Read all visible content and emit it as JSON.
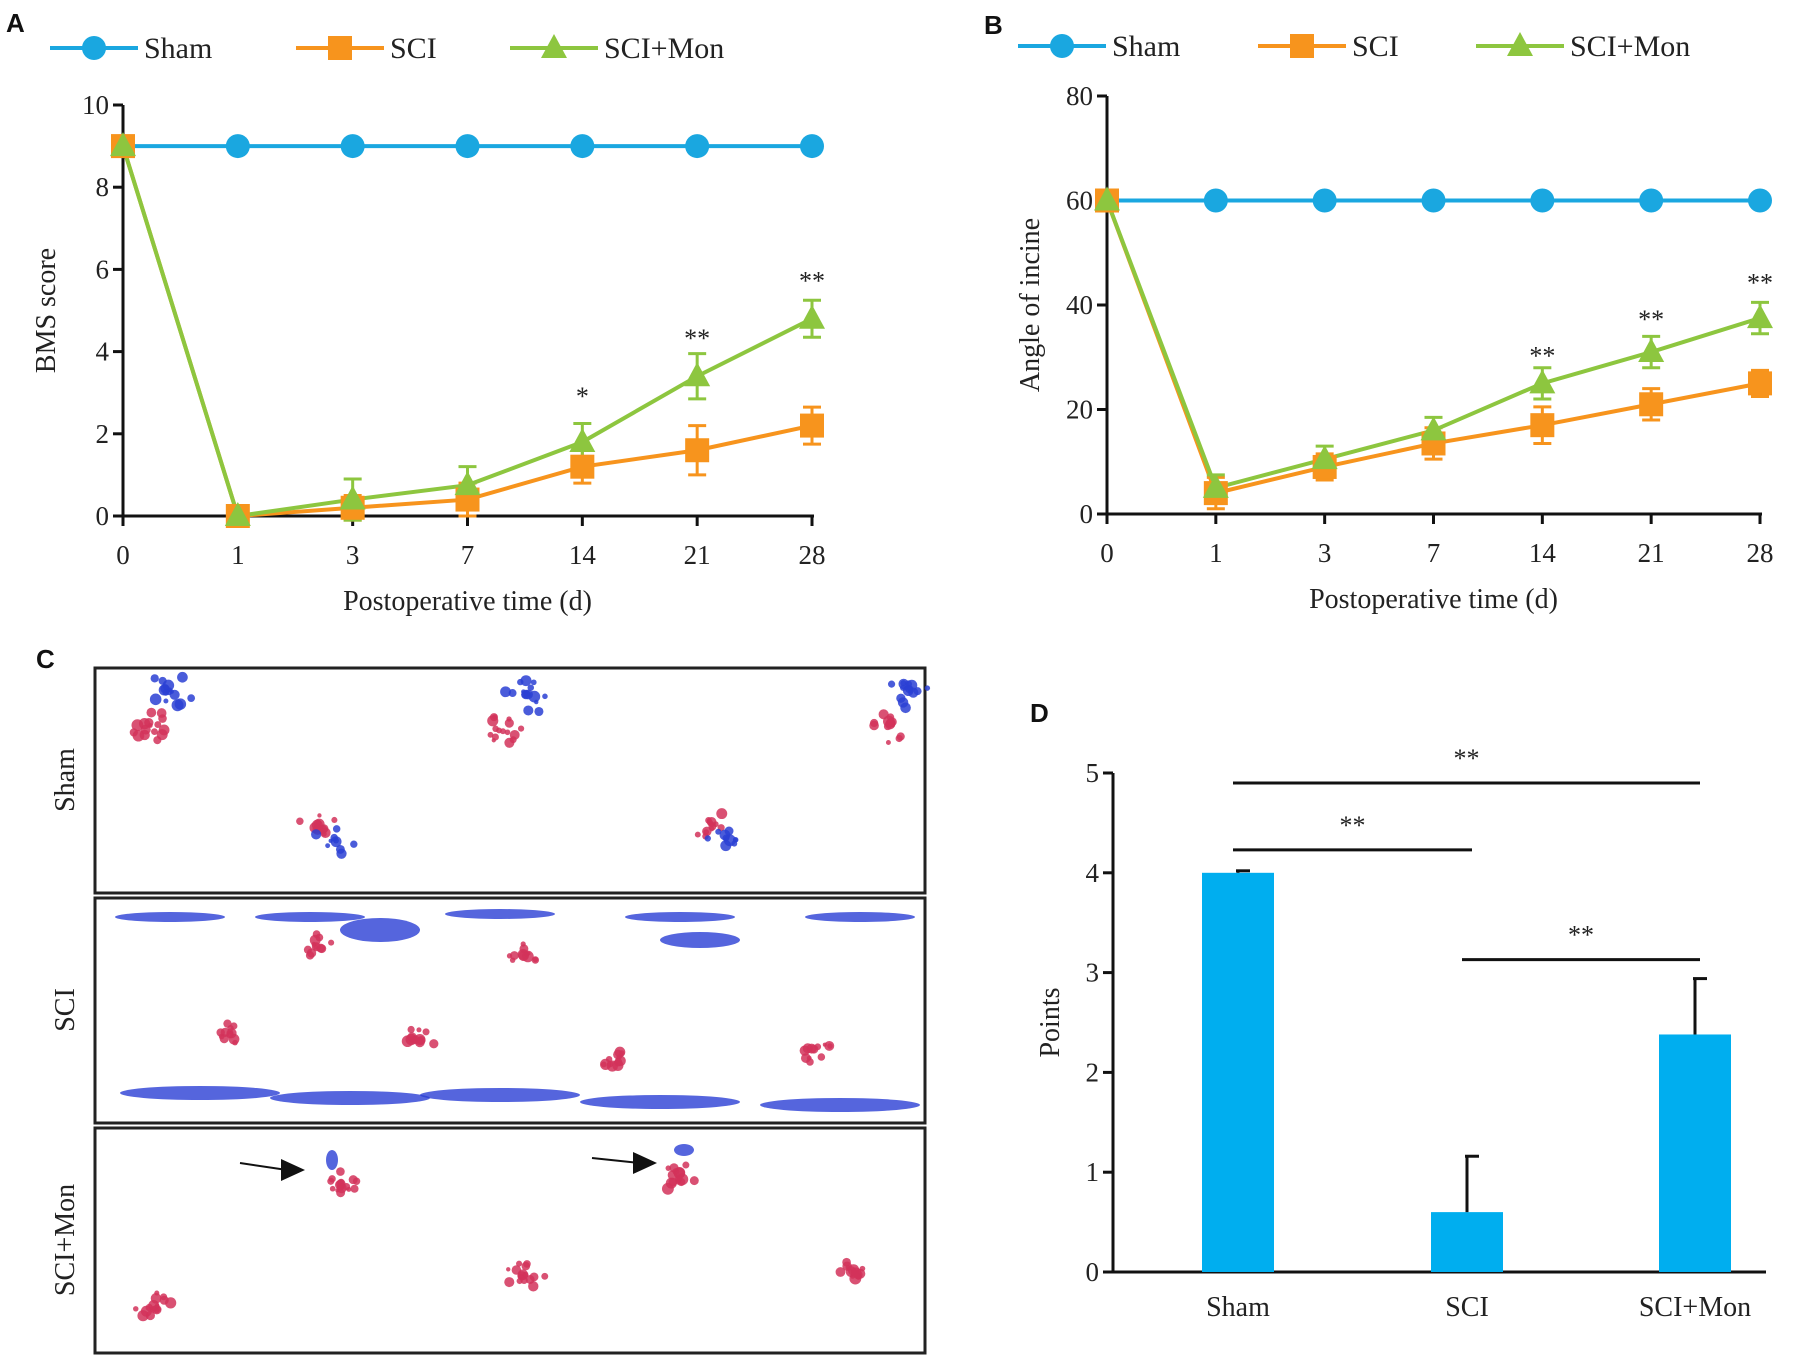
{
  "colors": {
    "sham": "#1aa7e0",
    "sci": "#f7941d",
    "sci_mon": "#8dc63f",
    "bar": "#00aeef",
    "axis": "#111111",
    "paw_red": "#d2335a",
    "paw_blue": "#2a3fd4"
  },
  "panels": {
    "A": "A",
    "B": "B",
    "C": "C",
    "D": "D"
  },
  "footprints": {
    "rows": [
      "Sham",
      "SCI",
      "SCI+Mon"
    ]
  },
  "chart_data": [
    {
      "type": "line",
      "panel": "A",
      "x": [
        "0",
        "1",
        "3",
        "7",
        "14",
        "21",
        "28"
      ],
      "xlabel": "Postoperative time (d)",
      "ylabel": "BMS score",
      "ylim": [
        0,
        10
      ],
      "yticks": [
        "0",
        "2",
        "4",
        "6",
        "8",
        "10"
      ],
      "legend_position": "top",
      "series": [
        {
          "name": "Sham",
          "marker": "circle",
          "values": [
            9,
            9,
            9,
            9,
            9,
            9,
            9
          ],
          "errors": [
            0,
            0,
            0,
            0,
            0,
            0,
            0
          ]
        },
        {
          "name": "SCI",
          "marker": "square",
          "values": [
            9,
            0,
            0.2,
            0.4,
            1.2,
            1.6,
            2.2
          ],
          "errors": [
            0,
            0,
            0.3,
            0.4,
            0.4,
            0.6,
            0.45
          ]
        },
        {
          "name": "SCI+Mon",
          "marker": "triangle",
          "values": [
            9,
            0,
            0.4,
            0.75,
            1.8,
            3.4,
            4.8
          ],
          "errors": [
            0,
            0,
            0.5,
            0.45,
            0.45,
            0.55,
            0.45
          ]
        }
      ],
      "annotations": [
        {
          "x": "14",
          "label": "*",
          "above": 2.95
        },
        {
          "x": "21",
          "label": "**",
          "above": 4.35
        },
        {
          "x": "28",
          "label": "**",
          "above": 5.75
        }
      ]
    },
    {
      "type": "line",
      "panel": "B",
      "x": [
        "0",
        "1",
        "3",
        "7",
        "14",
        "21",
        "28"
      ],
      "xlabel": "Postoperative time (d)",
      "ylabel": "Angle of incine",
      "ylim": [
        0,
        80
      ],
      "yticks": [
        "0",
        "20",
        "40",
        "60",
        "80"
      ],
      "legend_position": "top",
      "series": [
        {
          "name": "Sham",
          "marker": "circle",
          "values": [
            60,
            60,
            60,
            60,
            60,
            60,
            60
          ],
          "errors": [
            0,
            0,
            0,
            0,
            0,
            0,
            0
          ]
        },
        {
          "name": "SCI",
          "marker": "square",
          "values": [
            60,
            4,
            9,
            13.5,
            17,
            21,
            25
          ],
          "errors": [
            0,
            3,
            2.5,
            3,
            3.5,
            3,
            2.5
          ]
        },
        {
          "name": "SCI+Mon",
          "marker": "triangle",
          "values": [
            60,
            5,
            10.5,
            16,
            25,
            31,
            37.5
          ],
          "errors": [
            0,
            2.5,
            2.5,
            2.5,
            3,
            3,
            3
          ]
        }
      ],
      "annotations": [
        {
          "x": "14",
          "label": "**",
          "above": 30.5
        },
        {
          "x": "21",
          "label": "**",
          "above": 37.5
        },
        {
          "x": "28",
          "label": "**",
          "above": 44.5
        }
      ]
    },
    {
      "type": "bar",
      "panel": "D",
      "categories": [
        "Sham",
        "SCI",
        "SCI+Mon"
      ],
      "values": [
        4.0,
        0.6,
        2.38
      ],
      "errors": [
        0.02,
        0.56,
        0.56
      ],
      "ylabel": "Points",
      "ylim": [
        0,
        5
      ],
      "yticks": [
        "0",
        "1",
        "2",
        "3",
        "4",
        "5"
      ],
      "significance": [
        {
          "from": 0,
          "to": 2,
          "label": "**",
          "level": 4.9
        },
        {
          "from": 0,
          "to": 1,
          "label": "**",
          "level": 4.23
        },
        {
          "from": 1,
          "to": 2,
          "label": "**",
          "level": 3.13
        }
      ]
    }
  ]
}
